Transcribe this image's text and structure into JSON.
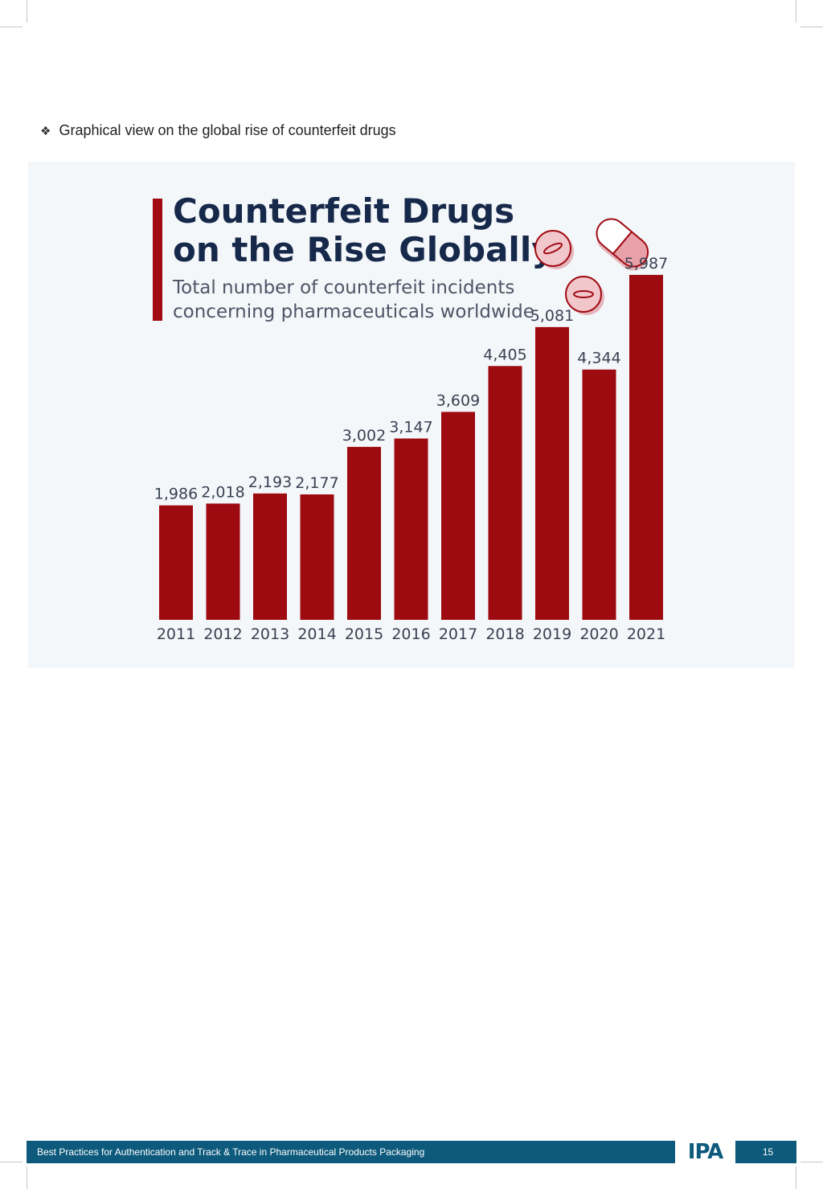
{
  "bullet": {
    "glyph": "❖",
    "text": "Graphical view on the global rise of counterfeit drugs"
  },
  "infographic": {
    "title_line1": "Counterfeit Drugs",
    "title_line2": "on the Rise Globally",
    "subtitle_line1": "Total number of counterfeit incidents",
    "subtitle_line2": "concerning pharmaceuticals worldwide",
    "accent_color": "#a00b13",
    "bar_color": "#9d0a0f"
  },
  "chart_data": {
    "type": "bar",
    "title": "Counterfeit Drugs on the Rise Globally",
    "subtitle": "Total number of counterfeit incidents concerning pharmaceuticals worldwide",
    "categories": [
      "2011",
      "2012",
      "2013",
      "2014",
      "2015",
      "2016",
      "2017",
      "2018",
      "2019",
      "2020",
      "2021"
    ],
    "values": [
      1986,
      2018,
      2193,
      2177,
      3002,
      3147,
      3609,
      4405,
      5081,
      4344,
      5987
    ],
    "value_labels": [
      "1,986",
      "2,018",
      "2,193",
      "2,177",
      "3,002",
      "3,147",
      "3,609",
      "4,405",
      "5,081",
      "4,344",
      "5,987"
    ],
    "xlabel": "",
    "ylabel": "",
    "ylim": [
      0,
      6000
    ],
    "grid": false,
    "legend": "none"
  },
  "footer": {
    "text": "Best Practices for Authentication and Track & Trace in Pharmaceutical Products Packaging",
    "logo": "IPA",
    "page_number": "15"
  }
}
